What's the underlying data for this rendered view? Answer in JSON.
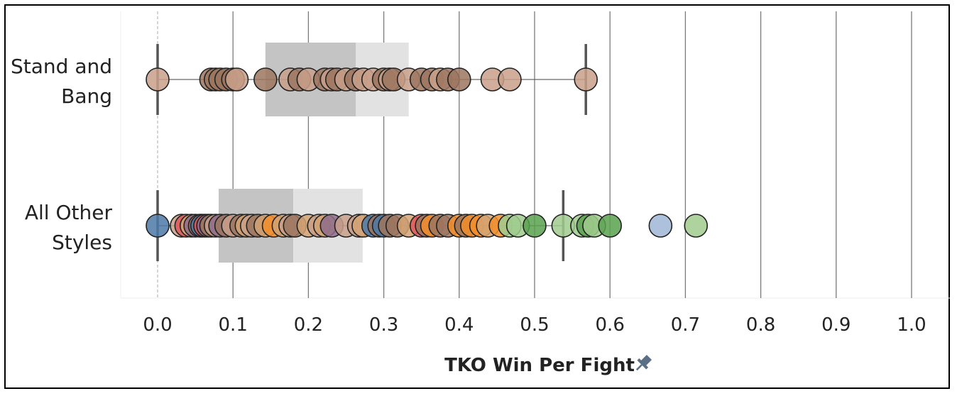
{
  "chart_data": {
    "type": "scatter",
    "subtype": "box-and-whisker with jittered points",
    "xlabel": "TKO Win Per Fight",
    "xlim": [
      0.0,
      1.0
    ],
    "x_ticks": [
      "0.0",
      "0.1",
      "0.2",
      "0.3",
      "0.4",
      "0.5",
      "0.6",
      "0.7",
      "0.8",
      "0.9",
      "1.0"
    ],
    "grid": "vertical",
    "xlabel_icon": "pin-icon",
    "categories": [
      {
        "label_lines": [
          "Stand and",
          "Bang"
        ]
      },
      {
        "label_lines": [
          "All Other",
          "Styles"
        ]
      }
    ],
    "boxes": [
      {
        "min": 0.0,
        "q1": 0.143,
        "median": 0.263,
        "q3": 0.333,
        "max": 0.568
      },
      {
        "min": 0.0,
        "q1": 0.081,
        "median": 0.18,
        "q3": 0.272,
        "max": 0.538
      }
    ],
    "colors": {
      "box_lower": "#c4c4c4",
      "box_upper": "#e2e2e2",
      "whisker": "#555555",
      "grid": "#7a7a7a",
      "zero_line": "#aaaaaa",
      "blue": "#4e79a7",
      "red": "#e15759",
      "purple": "#8e6c8a",
      "orange": "#f28e2b",
      "tan": "#d4a373",
      "brown": "#9c755f",
      "rose": "#c9a08a",
      "green": "#59a14f",
      "lightgreen": "#a0cb8e",
      "lightblue": "#a0b6d6"
    },
    "series": [
      {
        "points": [
          {
            "x": 0.0,
            "c": "rose"
          },
          {
            "x": 0.071,
            "c": "brown"
          },
          {
            "x": 0.077,
            "c": "brown"
          },
          {
            "x": 0.083,
            "c": "brown"
          },
          {
            "x": 0.091,
            "c": "brown"
          },
          {
            "x": 0.1,
            "c": "brown"
          },
          {
            "x": 0.105,
            "c": "rose"
          },
          {
            "x": 0.143,
            "c": "brown"
          },
          {
            "x": 0.176,
            "c": "rose"
          },
          {
            "x": 0.188,
            "c": "brown"
          },
          {
            "x": 0.2,
            "c": "rose"
          },
          {
            "x": 0.222,
            "c": "brown"
          },
          {
            "x": 0.231,
            "c": "rose"
          },
          {
            "x": 0.238,
            "c": "brown"
          },
          {
            "x": 0.25,
            "c": "rose"
          },
          {
            "x": 0.263,
            "c": "brown"
          },
          {
            "x": 0.273,
            "c": "rose"
          },
          {
            "x": 0.286,
            "c": "rose"
          },
          {
            "x": 0.3,
            "c": "brown"
          },
          {
            "x": 0.308,
            "c": "rose"
          },
          {
            "x": 0.313,
            "c": "brown"
          },
          {
            "x": 0.333,
            "c": "rose"
          },
          {
            "x": 0.35,
            "c": "brown"
          },
          {
            "x": 0.364,
            "c": "brown"
          },
          {
            "x": 0.375,
            "c": "rose"
          },
          {
            "x": 0.385,
            "c": "brown"
          },
          {
            "x": 0.4,
            "c": "brown"
          },
          {
            "x": 0.444,
            "c": "rose"
          },
          {
            "x": 0.467,
            "c": "rose"
          },
          {
            "x": 0.568,
            "c": "rose"
          }
        ]
      },
      {
        "points": [
          {
            "x": 0.0,
            "c": "blue"
          },
          {
            "x": 0.032,
            "c": "rose"
          },
          {
            "x": 0.038,
            "c": "red"
          },
          {
            "x": 0.045,
            "c": "tan"
          },
          {
            "x": 0.05,
            "c": "purple"
          },
          {
            "x": 0.056,
            "c": "brown"
          },
          {
            "x": 0.059,
            "c": "blue"
          },
          {
            "x": 0.063,
            "c": "red"
          },
          {
            "x": 0.067,
            "c": "purple"
          },
          {
            "x": 0.071,
            "c": "brown"
          },
          {
            "x": 0.077,
            "c": "rose"
          },
          {
            "x": 0.083,
            "c": "purple"
          },
          {
            "x": 0.091,
            "c": "brown"
          },
          {
            "x": 0.1,
            "c": "rose"
          },
          {
            "x": 0.111,
            "c": "brown"
          },
          {
            "x": 0.118,
            "c": "tan"
          },
          {
            "x": 0.125,
            "c": "rose"
          },
          {
            "x": 0.133,
            "c": "brown"
          },
          {
            "x": 0.143,
            "c": "tan"
          },
          {
            "x": 0.154,
            "c": "orange"
          },
          {
            "x": 0.167,
            "c": "tan"
          },
          {
            "x": 0.176,
            "c": "rose"
          },
          {
            "x": 0.182,
            "c": "brown"
          },
          {
            "x": 0.2,
            "c": "tan"
          },
          {
            "x": 0.214,
            "c": "rose"
          },
          {
            "x": 0.222,
            "c": "tan"
          },
          {
            "x": 0.231,
            "c": "purple"
          },
          {
            "x": 0.25,
            "c": "rose"
          },
          {
            "x": 0.267,
            "c": "rose"
          },
          {
            "x": 0.273,
            "c": "tan"
          },
          {
            "x": 0.286,
            "c": "blue"
          },
          {
            "x": 0.294,
            "c": "brown"
          },
          {
            "x": 0.3,
            "c": "blue"
          },
          {
            "x": 0.308,
            "c": "brown"
          },
          {
            "x": 0.318,
            "c": "brown"
          },
          {
            "x": 0.333,
            "c": "tan"
          },
          {
            "x": 0.35,
            "c": "red"
          },
          {
            "x": 0.357,
            "c": "brown"
          },
          {
            "x": 0.364,
            "c": "orange"
          },
          {
            "x": 0.375,
            "c": "brown"
          },
          {
            "x": 0.385,
            "c": "brown"
          },
          {
            "x": 0.4,
            "c": "orange"
          },
          {
            "x": 0.409,
            "c": "brown"
          },
          {
            "x": 0.417,
            "c": "orange"
          },
          {
            "x": 0.429,
            "c": "orange"
          },
          {
            "x": 0.438,
            "c": "tan"
          },
          {
            "x": 0.455,
            "c": "orange"
          },
          {
            "x": 0.467,
            "c": "lightgreen"
          },
          {
            "x": 0.478,
            "c": "lightgreen"
          },
          {
            "x": 0.5,
            "c": "green"
          },
          {
            "x": 0.538,
            "c": "lightgreen"
          },
          {
            "x": 0.563,
            "c": "lightgreen"
          },
          {
            "x": 0.571,
            "c": "green"
          },
          {
            "x": 0.579,
            "c": "lightgreen"
          },
          {
            "x": 0.6,
            "c": "green"
          },
          {
            "x": 0.667,
            "c": "lightblue"
          },
          {
            "x": 0.714,
            "c": "lightgreen"
          }
        ]
      }
    ]
  }
}
